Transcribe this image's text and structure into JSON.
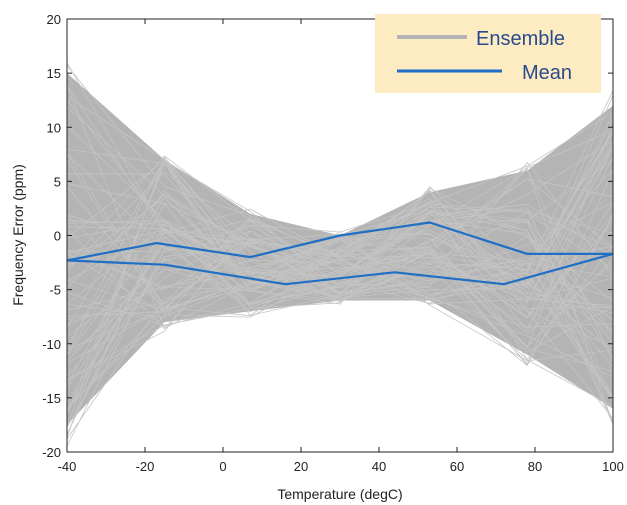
{
  "chart_data": {
    "type": "line",
    "xlabel": "Temperature (degC)",
    "ylabel": "Frequency Error (ppm)",
    "xlim": [
      -40,
      100
    ],
    "ylim": [
      -20,
      20
    ],
    "xticks": [
      -40,
      -20,
      0,
      20,
      40,
      60,
      80,
      100
    ],
    "yticks": [
      -20,
      -15,
      -10,
      -5,
      0,
      5,
      10,
      15,
      20
    ],
    "grid": false,
    "legend": {
      "placement": "top-right",
      "entries": [
        {
          "name": "Ensemble",
          "color": "#b4b4b4"
        },
        {
          "name": "Mean",
          "color": "#1f6fc5"
        }
      ]
    },
    "ensemble_envelope": {
      "x": [
        -40,
        -15,
        7,
        30,
        53,
        78,
        100
      ],
      "upper": [
        15,
        7,
        2,
        0,
        4,
        6,
        12
      ],
      "lower": [
        -17.5,
        -8,
        -7,
        -6,
        -6,
        -11,
        -16
      ]
    },
    "series": [
      {
        "name": "Mean",
        "color": "#1f6fc5",
        "x": [
          -40,
          -17,
          7,
          30,
          53,
          78,
          100
        ],
        "values": [
          -2.3,
          -0.7,
          -2.0,
          0.0,
          1.2,
          -1.7,
          -1.7
        ]
      },
      {
        "name": "Mean",
        "color": "#1f6fc5",
        "x": [
          -40,
          -15,
          16,
          44,
          72,
          100
        ],
        "values": [
          -2.3,
          -2.7,
          -4.5,
          -3.4,
          -4.5,
          -1.7
        ]
      }
    ]
  }
}
